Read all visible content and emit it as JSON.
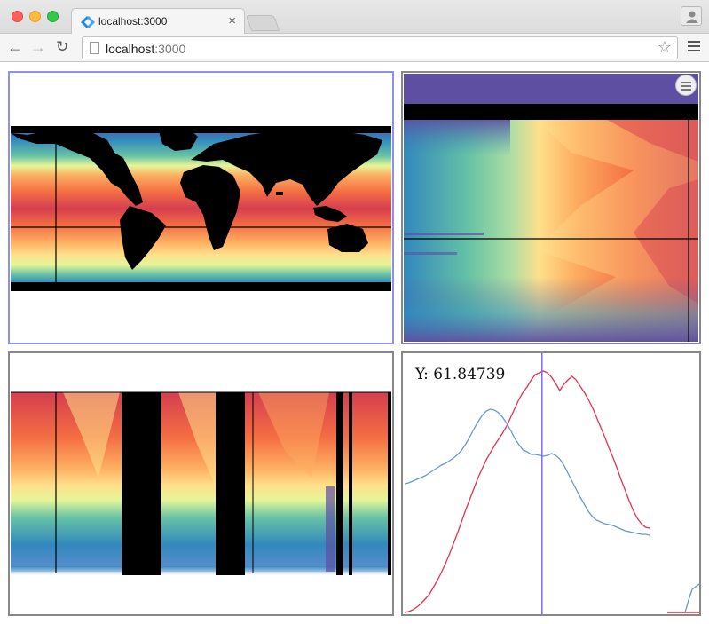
{
  "browser": {
    "tab_title": "localhost:3000",
    "tab_close": "×",
    "url_host": "localhost",
    "url_port": ":3000",
    "back_icon": "arrow-left-icon",
    "forward_icon": "arrow-right-icon",
    "reload_icon": "reload-icon",
    "bookmark_icon": "star-icon",
    "menu_icon": "hamburger-menu-icon",
    "profile_icon": "person-icon"
  },
  "panels": {
    "map": {
      "selected_color": "#8f8ff0"
    },
    "hovmoller": {
      "menu_icon": "hamburger-menu-icon"
    },
    "profile": {},
    "line_plot": {
      "readout": "Y: 61.84739",
      "cursor_color": "#7b6fe0",
      "series_colors": [
        "#e0344f",
        "#6699cc"
      ]
    }
  },
  "chart_data": {
    "type": "line",
    "title": "",
    "xlabel": "",
    "ylabel": "",
    "series": [
      {
        "color": "#e0344f",
        "values": [
          0,
          1,
          3,
          6,
          10,
          15,
          20,
          28,
          36,
          45,
          55,
          66,
          78,
          90,
          103,
          116,
          128,
          140,
          152,
          162,
          172,
          180,
          188,
          195,
          202,
          210,
          220,
          230,
          240,
          248,
          254,
          262,
          268,
          270,
          272,
          270,
          265,
          258,
          250,
          257,
          262,
          266,
          262,
          255,
          248,
          240,
          231,
          220,
          209,
          198,
          186,
          175,
          163,
          150,
          138,
          126,
          115,
          106,
          100,
          96,
          95
        ]
      },
      {
        "color": "#6699cc",
        "values": [
          145,
          146,
          148,
          150,
          152,
          154,
          157,
          160,
          163,
          166,
          168,
          171,
          174,
          178,
          183,
          190,
          198,
          207,
          215,
          222,
          227,
          229,
          228,
          225,
          220,
          213,
          205,
          196,
          189,
          183,
          181,
          178,
          178,
          177,
          176,
          177,
          179,
          177,
          173,
          166,
          157,
          148,
          139,
          130,
          122,
          114,
          108,
          104,
          102,
          100,
          99,
          98,
          96,
          94,
          92,
          91,
          90,
          89,
          88,
          88,
          87
        ]
      }
    ],
    "cursor_index": 33,
    "readout": "Y: 61.84739"
  }
}
